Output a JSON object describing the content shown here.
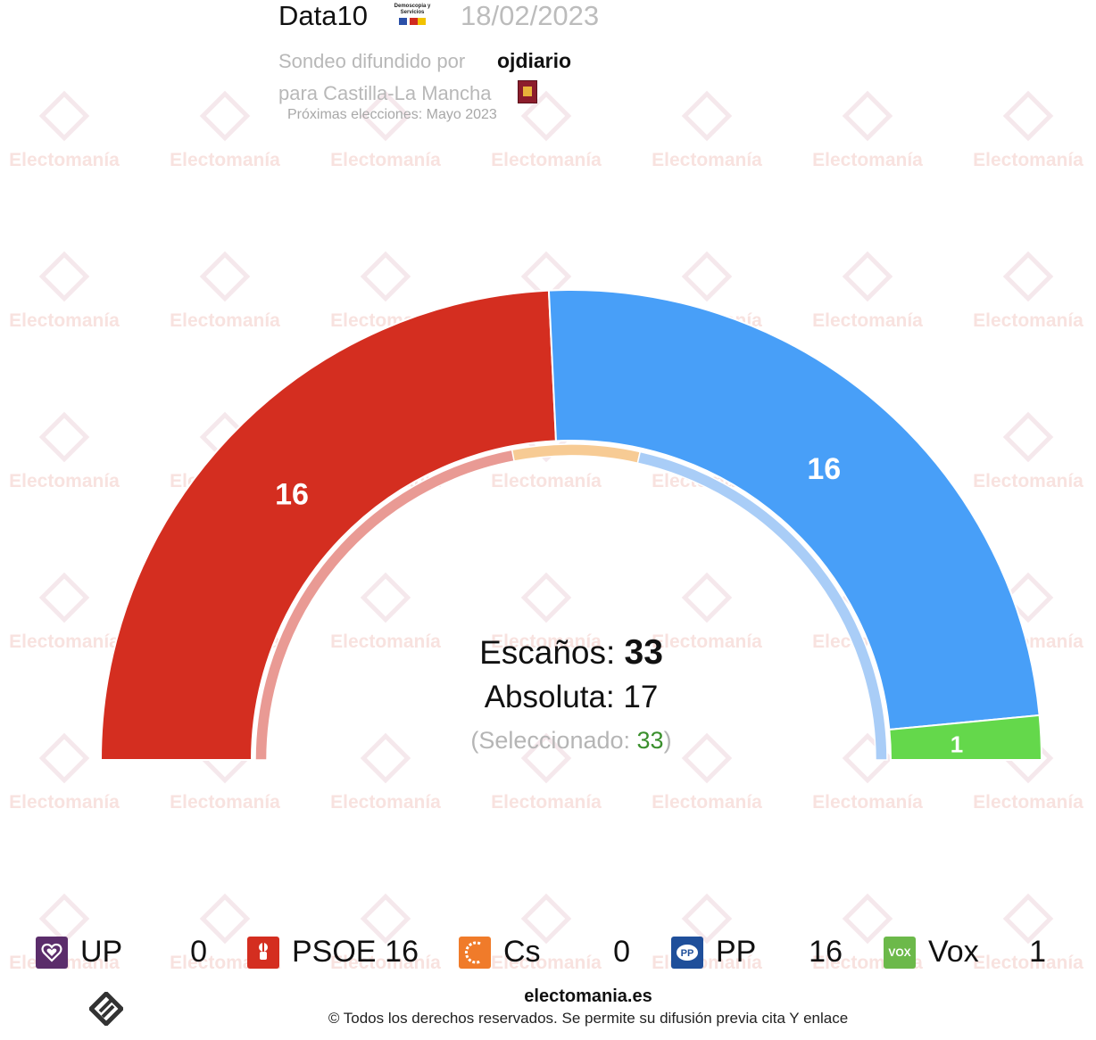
{
  "header": {
    "pollster": "Data10",
    "pollster_logo_text": "Demoscopia y Servicios",
    "date": "18/02/2023",
    "sub_prefix": "Sondeo difundido por",
    "media": "ojdiario",
    "region_line": "para Castilla-La Mancha",
    "next_elections": "Próximas elecciones: Mayo 2023"
  },
  "watermark": {
    "text": "Electomanía"
  },
  "chart_data": {
    "type": "pie",
    "subtype": "parliament-semicircle",
    "total_seats": 33,
    "majority": 17,
    "selected": 33,
    "outer_segments": [
      {
        "name": "PSOE",
        "value": 16,
        "color": "#d42e20",
        "label": "16"
      },
      {
        "name": "PP",
        "value": 16,
        "color": "#489ff8",
        "label": "16"
      },
      {
        "name": "Vox",
        "value": 1,
        "color": "#64d84b",
        "label": "1"
      }
    ],
    "inner_ring": [
      {
        "name": "PSOE",
        "value": 0.44,
        "color": "#e99a94"
      },
      {
        "name": "Cs",
        "value": 0.13,
        "color": "#f7cb94"
      },
      {
        "name": "PP",
        "value": 0.43,
        "color": "#a9cdf7"
      }
    ]
  },
  "center": {
    "seats_label": "Escaños:",
    "seats_value": "33",
    "majority_text": "Absoluta: 17",
    "selected_prefix": "(Seleccionado: ",
    "selected_value": "33",
    "selected_suffix": ")"
  },
  "legend": [
    {
      "name": "UP",
      "value": "0",
      "color": "#5b2d6b",
      "icon": "heart-icon"
    },
    {
      "name": "PSOE",
      "value": "16",
      "color": "#d42e20",
      "icon": "rose-fist-icon"
    },
    {
      "name": "Cs",
      "value": "0",
      "color": "#f07b2a",
      "icon": "cs-arc-icon"
    },
    {
      "name": "PP",
      "value": "16",
      "color": "#1f4f9a",
      "icon": "pp-icon",
      "icon_text": "PP"
    },
    {
      "name": "Vox",
      "value": "1",
      "color": "#6cb94a",
      "icon": "vox-icon",
      "icon_text": "VOX"
    }
  ],
  "footer": {
    "site": "electomania.es",
    "copyright": "© Todos los derechos reservados. Se permite su difusión previa cita Y enlace"
  }
}
